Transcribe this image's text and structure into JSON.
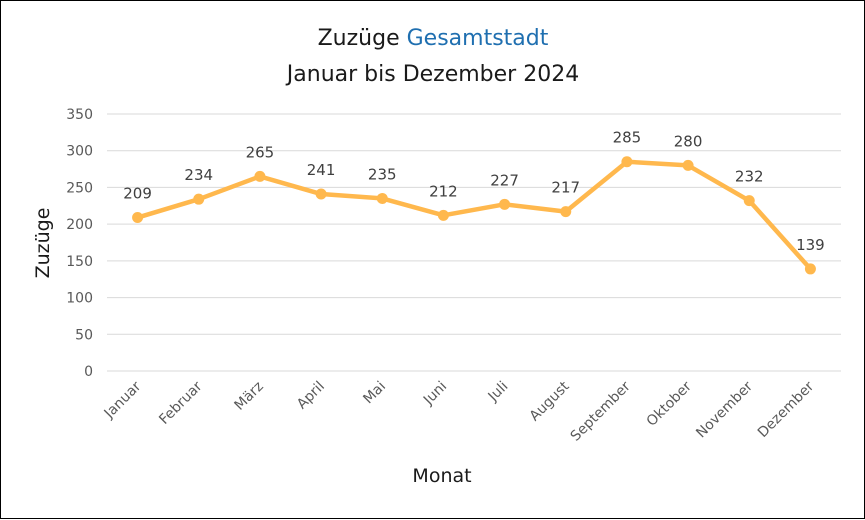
{
  "chart_data": {
    "type": "line",
    "title_part1": "Zuzüge",
    "title_part2": "Gesamtstadt",
    "subtitle": "Januar bis Dezember 2024",
    "xlabel": "Monat",
    "ylabel": "Zuzüge",
    "categories": [
      "Januar",
      "Februar",
      "März",
      "April",
      "Mai",
      "Juni",
      "Juli",
      "August",
      "September",
      "Oktober",
      "November",
      "Dezember"
    ],
    "series": [
      {
        "values": [
          209,
          234,
          265,
          241,
          235,
          212,
          227,
          217,
          285,
          280,
          232,
          139
        ]
      }
    ],
    "ylim": [
      0,
      350
    ],
    "yticks": [
      "0",
      "50",
      "100",
      "150",
      "200",
      "250",
      "300",
      "350"
    ],
    "grid": true,
    "legend": "none",
    "colors": {
      "line": "#FFB84D",
      "accent_title": "#1F6FB0",
      "grid": "#D9D9D9"
    }
  }
}
